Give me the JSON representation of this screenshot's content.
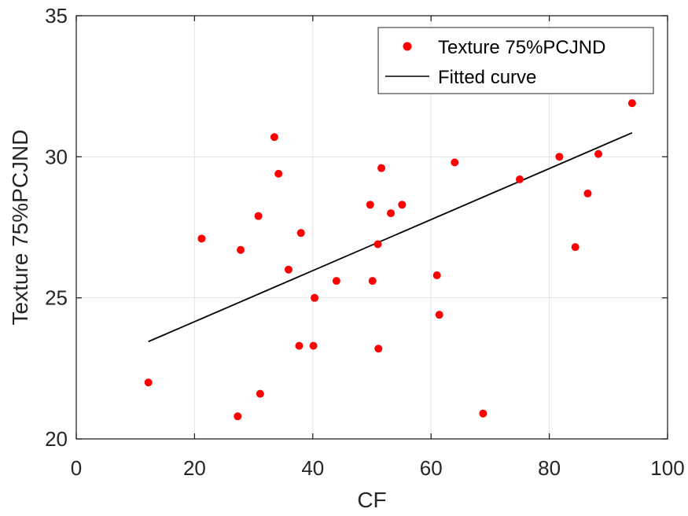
{
  "chart_data": {
    "type": "scatter",
    "title": "",
    "xlabel": "CF",
    "ylabel": "Texture 75%PCJND",
    "xlim": [
      0,
      100
    ],
    "ylim": [
      20,
      35
    ],
    "xticks": [
      0,
      20,
      40,
      60,
      80,
      100
    ],
    "yticks": [
      20,
      25,
      30,
      35
    ],
    "grid": true,
    "legend_position": "top-right",
    "series": [
      {
        "name": "Texture 75%PCJND",
        "kind": "points",
        "color": "#ff0000",
        "points": [
          [
            12.2,
            22.0
          ],
          [
            21.2,
            27.1
          ],
          [
            27.3,
            20.8
          ],
          [
            27.8,
            26.7
          ],
          [
            30.8,
            27.9
          ],
          [
            31.1,
            21.6
          ],
          [
            33.5,
            30.7
          ],
          [
            34.2,
            29.4
          ],
          [
            35.9,
            26.0
          ],
          [
            37.7,
            23.3
          ],
          [
            38.0,
            27.3
          ],
          [
            40.1,
            23.3
          ],
          [
            40.3,
            25.0
          ],
          [
            44.0,
            25.6
          ],
          [
            49.7,
            28.3
          ],
          [
            50.1,
            25.6
          ],
          [
            51.0,
            26.9
          ],
          [
            51.1,
            23.2
          ],
          [
            51.6,
            29.6
          ],
          [
            53.2,
            28.0
          ],
          [
            55.1,
            28.3
          ],
          [
            61.0,
            25.8
          ],
          [
            61.4,
            24.4
          ],
          [
            64.0,
            29.8
          ],
          [
            68.8,
            20.9
          ],
          [
            75.0,
            29.2
          ],
          [
            81.7,
            30.0
          ],
          [
            84.4,
            26.8
          ],
          [
            86.5,
            28.7
          ],
          [
            88.3,
            30.1
          ],
          [
            94.0,
            31.9
          ]
        ]
      },
      {
        "name": "Fitted curve",
        "kind": "line",
        "color": "#000000",
        "points": [
          [
            12.2,
            23.45
          ],
          [
            94.0,
            30.85
          ]
        ]
      }
    ]
  }
}
